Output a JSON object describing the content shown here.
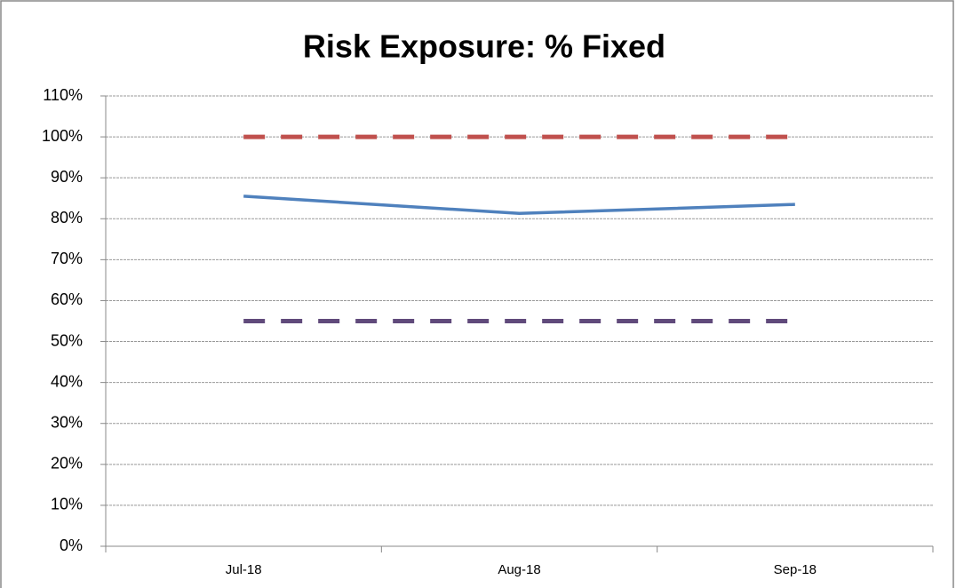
{
  "chart_data": {
    "type": "line",
    "title": "Risk Exposure: % Fixed",
    "categories": [
      "Jul-18",
      "Aug-18",
      "Sep-18"
    ],
    "series": [
      {
        "color": "#4f81bd",
        "style": "solid",
        "values": [
          85.5,
          81.3,
          83.5
        ]
      },
      {
        "color": "#c0504d",
        "style": "dashed",
        "values": [
          100,
          100,
          100
        ]
      },
      {
        "color": "#604a7b",
        "style": "dashed",
        "values": [
          55,
          55,
          55
        ]
      }
    ],
    "ylim": [
      0,
      110
    ],
    "yticks": [
      {
        "value": 0,
        "label": "0%"
      },
      {
        "value": 10,
        "label": "10%"
      },
      {
        "value": 20,
        "label": "20%"
      },
      {
        "value": 30,
        "label": "30%"
      },
      {
        "value": 40,
        "label": "40%"
      },
      {
        "value": 50,
        "label": "50%"
      },
      {
        "value": 60,
        "label": "60%"
      },
      {
        "value": 70,
        "label": "70%"
      },
      {
        "value": 80,
        "label": "80%"
      },
      {
        "value": 90,
        "label": "90%"
      },
      {
        "value": 100,
        "label": "100%"
      },
      {
        "value": 110,
        "label": "110%"
      }
    ],
    "grid": true
  }
}
